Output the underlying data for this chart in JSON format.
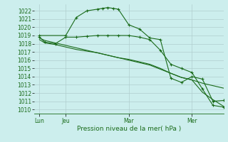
{
  "title": "Pression niveau de la mer( hPa )",
  "ylabel_ticks": [
    1010,
    1011,
    1012,
    1013,
    1014,
    1015,
    1016,
    1017,
    1018,
    1019,
    1020,
    1021,
    1022
  ],
  "ylim": [
    1009.5,
    1022.8
  ],
  "xlim": [
    0,
    18
  ],
  "xtick_positions": [
    0.5,
    3,
    9,
    15
  ],
  "xtick_labels": [
    "Lun",
    "Jeu",
    "Mar",
    "Mer"
  ],
  "vline_positions": [
    0.5,
    3,
    9,
    15
  ],
  "bg_color": "#cceeed",
  "line_color": "#1a6b1a",
  "marker": "+",
  "markersize": 3,
  "linewidth": 0.8,
  "series1_x": [
    0.5,
    3,
    4,
    5,
    6,
    6.5,
    7,
    7.5,
    8,
    9,
    10,
    11,
    12,
    13,
    14,
    15,
    16,
    17,
    18
  ],
  "series1_y": [
    1019.0,
    1019.0,
    1021.2,
    1022.0,
    1022.2,
    1022.3,
    1022.4,
    1022.3,
    1022.2,
    1020.3,
    1019.8,
    1018.7,
    1018.5,
    1013.8,
    1013.3,
    1014.0,
    1013.7,
    1011.0,
    1011.1
  ],
  "series2_x": [
    0.5,
    1,
    2,
    3,
    4,
    5,
    6,
    7,
    8,
    9,
    10,
    11,
    12,
    13,
    14,
    15,
    16,
    17,
    18
  ],
  "series2_y": [
    1018.8,
    1018.2,
    1018.0,
    1018.8,
    1018.8,
    1018.9,
    1019.0,
    1019.0,
    1019.0,
    1019.0,
    1018.8,
    1018.5,
    1017.2,
    1015.5,
    1015.0,
    1014.5,
    1012.5,
    1010.5,
    1010.3
  ],
  "series3_x": [
    0.5,
    1,
    2,
    3,
    4,
    5,
    6,
    7,
    8,
    9,
    10,
    11,
    12,
    13,
    14,
    15,
    16,
    17,
    18
  ],
  "series3_y": [
    1018.5,
    1018.1,
    1017.9,
    1017.6,
    1017.3,
    1017.1,
    1016.9,
    1016.6,
    1016.3,
    1016.1,
    1015.8,
    1015.5,
    1015.0,
    1014.4,
    1013.9,
    1013.6,
    1013.2,
    1012.9,
    1012.6
  ],
  "series4_x": [
    0.5,
    1,
    2,
    3,
    4,
    5,
    6,
    7,
    8,
    9,
    10,
    11,
    12,
    13,
    14,
    15,
    16,
    17,
    18
  ],
  "series4_y": [
    1018.7,
    1018.4,
    1018.1,
    1017.8,
    1017.5,
    1017.2,
    1016.9,
    1016.6,
    1016.3,
    1016.0,
    1015.7,
    1015.4,
    1014.9,
    1014.4,
    1013.9,
    1013.6,
    1012.1,
    1011.2,
    1010.4
  ],
  "font_color": "#1a6b1a",
  "grid_color": "#b0cece",
  "font_size": 5.5,
  "title_font_size": 6.5
}
